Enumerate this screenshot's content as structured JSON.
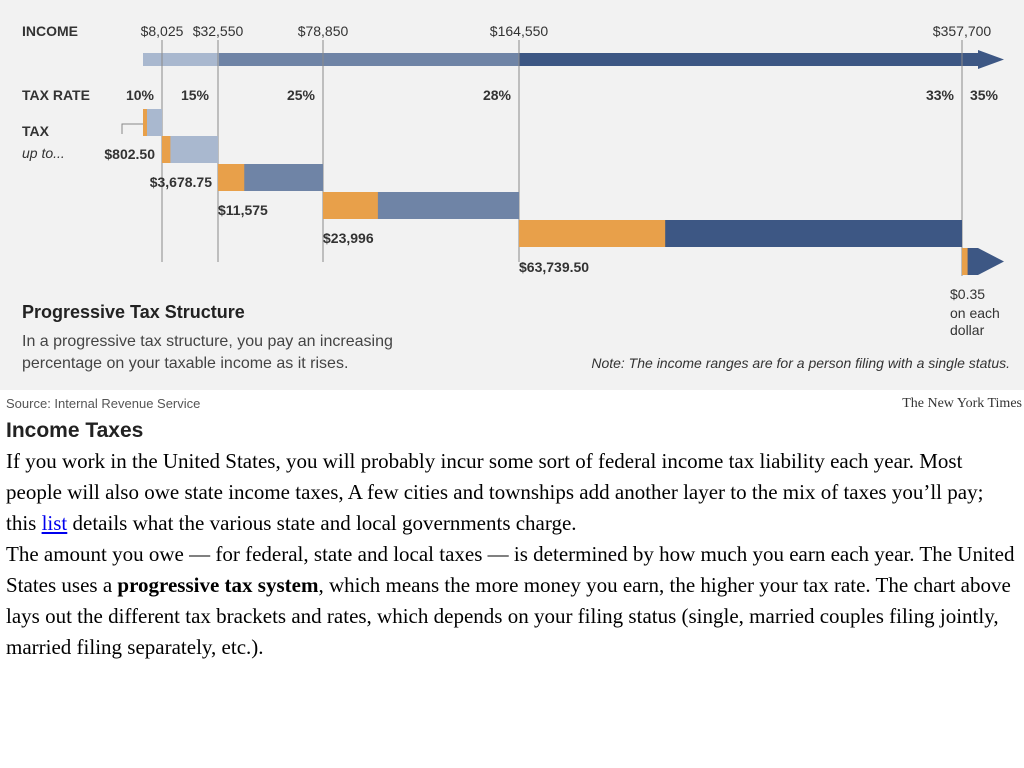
{
  "graphic": {
    "row_labels": {
      "income": "INCOME",
      "tax_rate": "TAX RATE",
      "tax": "TAX",
      "tax_sub": "up to..."
    },
    "income_thresholds": [
      "$8,025",
      "$32,550",
      "$78,850",
      "$164,550",
      "$357,700"
    ],
    "rates": [
      "10%",
      "15%",
      "25%",
      "28%",
      "33%",
      "35%"
    ],
    "tax_amounts": [
      "$802.50",
      "$3,678.75",
      "$11,575",
      "$23,996",
      "$63,739.50"
    ],
    "top_rate_note": [
      "$0.35",
      "on each",
      "dollar"
    ],
    "title": "Progressive Tax Structure",
    "description": [
      "In a progressive tax structure, you pay an increasing",
      "percentage on your taxable income as it rises."
    ],
    "note": "Note: The income ranges are for a person filing with a single status.",
    "colors": {
      "tax_portion": "#e8a04a",
      "bar_light": "#a9b8cf",
      "bar_mid": "#6f84a6",
      "bar_dark": "#3d5784",
      "background": "#f2f2f2"
    }
  },
  "credits": {
    "source": "Source: Internal Revenue Service",
    "publisher": "The New York Times"
  },
  "chart_data": {
    "type": "bar",
    "title": "Progressive Tax Structure",
    "categories": [
      "$0 to $8,025",
      "$8,025 to $32,550",
      "$32,550 to $78,850",
      "$78,850 to $164,550",
      "$164,550 to $357,700",
      "over $357,700"
    ],
    "income_ranges": [
      [
        0,
        8025
      ],
      [
        8025,
        32550
      ],
      [
        32550,
        78850
      ],
      [
        78850,
        164550
      ],
      [
        164550,
        357700
      ],
      [
        357700,
        null
      ]
    ],
    "series": [
      {
        "name": "TAX RATE",
        "values": [
          10,
          15,
          25,
          28,
          33,
          35
        ]
      },
      {
        "name": "TAX up to...",
        "values": [
          802.5,
          3678.75,
          11575,
          23996,
          63739.5,
          null
        ]
      }
    ]
  },
  "article": {
    "title": "Income Taxes",
    "p1": {
      "before_link": "If you work in the United States, you will probably incur some sort of federal income tax liability each year. Most people will also owe state income taxes, A few cities and townships add another layer to the mix of taxes you’ll pay; this ",
      "link": "list",
      "after_link": " details what the various state and local governments charge."
    },
    "p2": {
      "before_bold": "The amount you owe — for federal, state and local taxes — is determined by how much you earn each year. The United States uses a ",
      "bold": "progressive tax system",
      "after_bold": ", which means the more money you earn, the higher your tax rate. The chart above lays out the different tax brackets and rates, which depends on your filing status (single, married couples filing jointly, married filing separately, etc.)."
    }
  }
}
